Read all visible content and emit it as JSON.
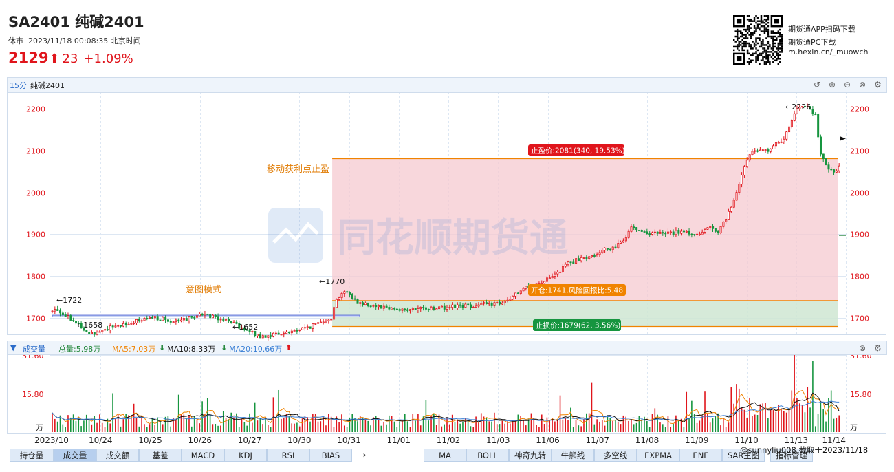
{
  "header": {
    "title": "SA2401 纯碱2401",
    "status": "休市",
    "datetime": "2023/11/18 00:08:35 北京时间",
    "price": "2129",
    "change": "23",
    "change_pct": "+1.09%",
    "up_color": "#e0151c"
  },
  "promo": {
    "line1": "期货通APP扫码下载",
    "line2": "期货通PC下载",
    "line3": "m.hexin.cn/_muowch"
  },
  "panel": {
    "period": "15分",
    "name": "纯碱2401",
    "icons": [
      "undo-icon",
      "zoom-in-icon",
      "zoom-out-icon",
      "close-icon",
      "settings-icon"
    ]
  },
  "watermark": "同花顺期货通",
  "annotations": {
    "move_stop": "移动获利点止盈",
    "pattern": "意图模式",
    "take_profit": "止盈价:2081(340, 19.53%)",
    "entry": "开仓:1741,风险回报比:5.48",
    "stop_loss": "止损价:1679(62, 3.56%)",
    "hi_left": "1722",
    "lo_left": "1658",
    "lo_mid": "1652",
    "hi_mid": "1770",
    "hi_top": "2226"
  },
  "volume_header": {
    "label": "成交量",
    "total": "总量:5.98万",
    "ma5": "MA5:7.03万",
    "ma10": "MA10:8.33万",
    "ma20": "MA20:10.66万",
    "ma5_color": "#f08300",
    "ma10_color": "#111111",
    "ma20_color": "#3a7fd5"
  },
  "volume_axis": {
    "top": "31.60",
    "mid": "15.80",
    "unit": "万"
  },
  "chart_data": [
    {
      "type": "candlestick",
      "title": "纯碱2401 15分",
      "y_ticks": [
        1700,
        1800,
        1900,
        2000,
        2100,
        2200
      ],
      "ylim": [
        1660,
        2240
      ],
      "x_labels": [
        "2023/10",
        "10/24",
        "10/25",
        "10/26",
        "10/27",
        "10/30",
        "10/31",
        "11/01",
        "11/02",
        "11/03",
        "11/06",
        "11/07",
        "11/08",
        "11/09",
        "11/10",
        "11/13",
        "11/14"
      ],
      "price_anchors": [
        {
          "t": 0.0,
          "p": 1715
        },
        {
          "t": 0.005,
          "p": 1722
        },
        {
          "t": 0.03,
          "p": 1690
        },
        {
          "t": 0.045,
          "p": 1660
        },
        {
          "t": 0.08,
          "p": 1680
        },
        {
          "t": 0.13,
          "p": 1700
        },
        {
          "t": 0.16,
          "p": 1690
        },
        {
          "t": 0.19,
          "p": 1710
        },
        {
          "t": 0.22,
          "p": 1695
        },
        {
          "t": 0.245,
          "p": 1670
        },
        {
          "t": 0.265,
          "p": 1655
        },
        {
          "t": 0.3,
          "p": 1665
        },
        {
          "t": 0.33,
          "p": 1680
        },
        {
          "t": 0.345,
          "p": 1695
        },
        {
          "t": 0.355,
          "p": 1700
        },
        {
          "t": 0.36,
          "p": 1740
        },
        {
          "t": 0.37,
          "p": 1765
        },
        {
          "t": 0.39,
          "p": 1735
        },
        {
          "t": 0.45,
          "p": 1718
        },
        {
          "t": 0.52,
          "p": 1728
        },
        {
          "t": 0.575,
          "p": 1735
        },
        {
          "t": 0.6,
          "p": 1770
        },
        {
          "t": 0.635,
          "p": 1795
        },
        {
          "t": 0.655,
          "p": 1830
        },
        {
          "t": 0.7,
          "p": 1860
        },
        {
          "t": 0.725,
          "p": 1880
        },
        {
          "t": 0.735,
          "p": 1920
        },
        {
          "t": 0.76,
          "p": 1900
        },
        {
          "t": 0.8,
          "p": 1905
        },
        {
          "t": 0.82,
          "p": 1900
        },
        {
          "t": 0.835,
          "p": 1920
        },
        {
          "t": 0.845,
          "p": 1900
        },
        {
          "t": 0.865,
          "p": 1970
        },
        {
          "t": 0.875,
          "p": 2030
        },
        {
          "t": 0.885,
          "p": 2095
        },
        {
          "t": 0.91,
          "p": 2100
        },
        {
          "t": 0.93,
          "p": 2130
        },
        {
          "t": 0.945,
          "p": 2195
        },
        {
          "t": 0.955,
          "p": 2210
        },
        {
          "t": 0.97,
          "p": 2185
        },
        {
          "t": 0.975,
          "p": 2100
        },
        {
          "t": 0.985,
          "p": 2060
        },
        {
          "t": 0.995,
          "p": 2050
        },
        {
          "t": 1.0,
          "p": 2060
        }
      ],
      "levels": {
        "take_profit": 2081,
        "entry": 1741,
        "stop_loss": 1679,
        "current": 2129,
        "pattern_band": [
          1702,
          1706
        ]
      }
    },
    {
      "type": "bar",
      "title": "成交量",
      "unit": "万",
      "ylim": [
        0,
        31.6
      ],
      "y_ticks": [
        15.8,
        31.6
      ],
      "series": [
        {
          "name": "MA5",
          "value": 7.03
        },
        {
          "name": "MA10",
          "value": 8.33
        },
        {
          "name": "MA20",
          "value": 10.66
        }
      ]
    }
  ],
  "bottom_tabs_left": [
    "持仓量",
    "成交量",
    "成交额",
    "基差",
    "MACD",
    "KDJ",
    "RSI",
    "BIAS"
  ],
  "bottom_tabs_right": [
    "MA",
    "BOLL",
    "神奇九转",
    "牛熊线",
    "多空线",
    "EXPMA",
    "ENE",
    "SAR主图",
    "指标管理"
  ],
  "active_tab": "成交量",
  "credit": "@sunnyliu008  截取于2023/11/18"
}
